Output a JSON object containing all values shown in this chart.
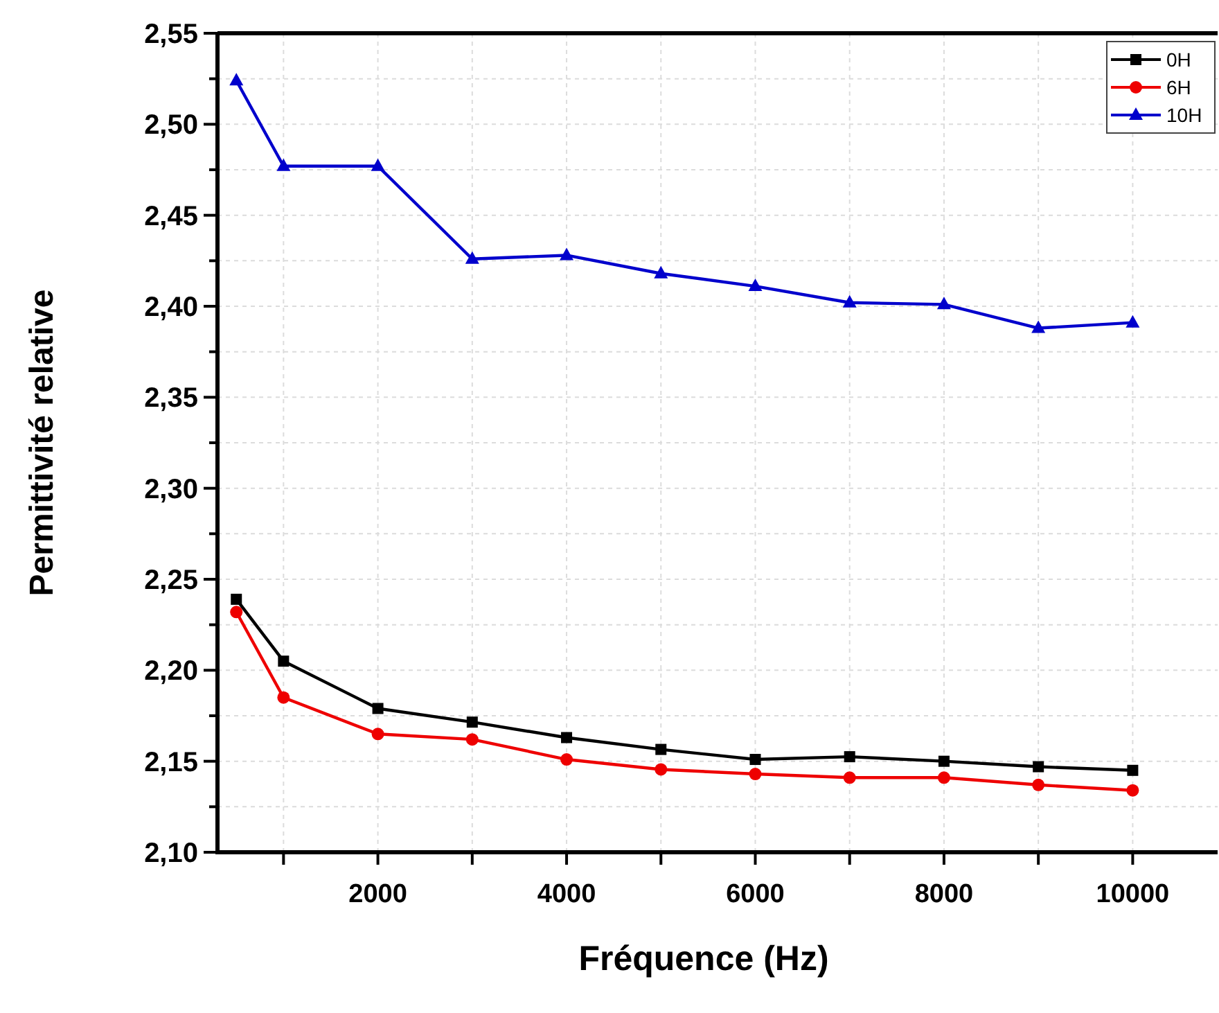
{
  "chart_data": {
    "type": "line",
    "xlabel": "Fréquence (Hz)",
    "ylabel": "Permittivité relative",
    "x": [
      500,
      1000,
      2000,
      3000,
      4000,
      5000,
      6000,
      7000,
      8000,
      9000,
      10000
    ],
    "series": [
      {
        "name": "0H",
        "color": "#000000",
        "marker": "square",
        "values": [
          2.239,
          2.205,
          2.179,
          2.1715,
          2.163,
          2.1565,
          2.151,
          2.1525,
          2.15,
          2.147,
          2.145
        ]
      },
      {
        "name": "6H",
        "color": "#ee0000",
        "marker": "circle",
        "values": [
          2.232,
          2.185,
          2.165,
          2.162,
          2.151,
          2.1455,
          2.143,
          2.141,
          2.141,
          2.137,
          2.134
        ]
      },
      {
        "name": "10H",
        "color": "#0000cc",
        "marker": "triangle",
        "values": [
          2.524,
          2.477,
          2.477,
          2.426,
          2.428,
          2.418,
          2.411,
          2.402,
          2.401,
          2.388,
          2.391
        ]
      }
    ],
    "xlim": [
      300,
      10900
    ],
    "xticks": [
      {
        "value": 1000,
        "label": null
      },
      2000,
      {
        "value": 3000,
        "label": null
      },
      4000,
      {
        "value": 5000,
        "label": null
      },
      6000,
      {
        "value": 7000,
        "label": null
      },
      8000,
      {
        "value": 9000,
        "label": null
      },
      10000
    ],
    "ylim": [
      2.1,
      2.55
    ],
    "yticks": [
      {
        "value": 2.1,
        "label": "2,10"
      },
      {
        "value": 2.125,
        "label": null
      },
      {
        "value": 2.15,
        "label": "2,15"
      },
      {
        "value": 2.175,
        "label": null
      },
      {
        "value": 2.2,
        "label": "2,20"
      },
      {
        "value": 2.225,
        "label": null
      },
      {
        "value": 2.25,
        "label": "2,25"
      },
      {
        "value": 2.275,
        "label": null
      },
      {
        "value": 2.3,
        "label": "2,30"
      },
      {
        "value": 2.325,
        "label": null
      },
      {
        "value": 2.35,
        "label": "2,35"
      },
      {
        "value": 2.375,
        "label": null
      },
      {
        "value": 2.4,
        "label": "2,40"
      },
      {
        "value": 2.425,
        "label": null
      },
      {
        "value": 2.45,
        "label": "2,45"
      },
      {
        "value": 2.475,
        "label": null
      },
      {
        "value": 2.5,
        "label": "2,50"
      },
      {
        "value": 2.525,
        "label": null
      },
      {
        "value": 2.55,
        "label": "2,55"
      }
    ],
    "grid": true,
    "legend": "top right",
    "line_style": "solid"
  }
}
